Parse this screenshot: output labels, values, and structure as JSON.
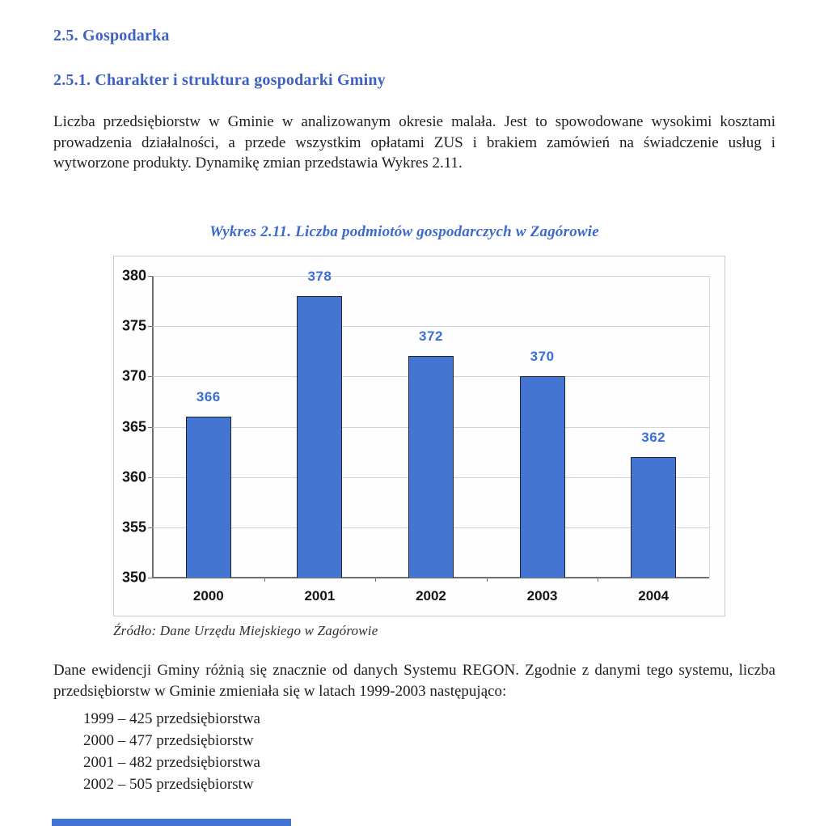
{
  "doc": {
    "heading1": "2.5. Gospodarka",
    "heading2": "2.5.1. Charakter i struktura gospodarki Gminy",
    "paragraph1": "Liczba przedsiębiorstw w Gminie w analizowanym okresie malała. Jest to spowodowane wysokimi kosztami prowadzenia działalności, a przede wszystkim opłatami ZUS i brakiem zamówień na świadczenie usług i wytworzone produkty. Dynamikę zmian przedstawia Wykres 2.11.",
    "chart_title": "Wykres 2.11. Liczba podmiotów gospodarczych w Zagórowie",
    "source_note": "Źródło: Dane Urzędu Miejskiego w Zagórowie",
    "paragraph2": "Dane ewidencji Gminy różnią się znacznie od danych Systemu REGON. Zgodnie z danymi tego systemu, liczba przedsiębiorstw w Gminie zmieniała się w latach 1999-2003 następująco:",
    "list_items": [
      "1999 – 425 przedsiębiorstwa",
      "2000 – 477 przedsiębiorstw",
      "2001 – 482 przedsiębiorstwa",
      "2002 – 505 przedsiębiorstw"
    ]
  },
  "chart_data": {
    "type": "bar",
    "title": "Wykres 2.11. Liczba podmiotów gospodarczych w Zagórowie",
    "categories": [
      "2000",
      "2001",
      "2002",
      "2003",
      "2004"
    ],
    "values": [
      366,
      378,
      372,
      370,
      362
    ],
    "ylim": [
      350,
      380
    ],
    "yticks": [
      350,
      355,
      360,
      365,
      370,
      375,
      380
    ],
    "grid": true,
    "legend": false,
    "xlabel": "",
    "ylabel": ""
  },
  "colors": {
    "heading_blue": "#3e62c4",
    "title_blue": "#3e6ad0",
    "bar_fill": "#4575d3",
    "bar_border": "#20242c",
    "value_blue": "#3a6fd8",
    "grid_color": "#ccd2dd",
    "axis_color": "#6f6f6f",
    "strip_blue": "#4575d3"
  }
}
